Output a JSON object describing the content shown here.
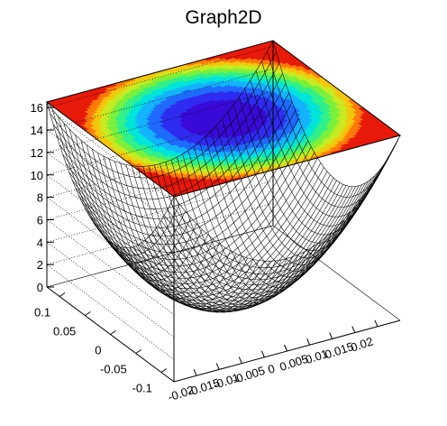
{
  "chart_data": {
    "type": "surface",
    "title": "Graph2D",
    "x_axis": {
      "label": "",
      "range": [
        -0.025,
        0.025
      ],
      "ticks": [
        -0.02,
        -0.015,
        -0.01,
        -0.005,
        0,
        0.005,
        0.01,
        0.015,
        0.02
      ],
      "tick_labels": [
        "-0.02",
        "-0.015",
        "-0.01",
        "-0.005",
        "0",
        "0.005",
        "0.01",
        "0.015",
        "0.02"
      ]
    },
    "y_axis": {
      "label": "",
      "range": [
        -0.125,
        0.125
      ],
      "ticks": [
        -0.1,
        -0.05,
        0,
        0.05,
        0.1
      ],
      "tick_labels": [
        "-0.1",
        "-0.05",
        "0",
        "0.05",
        "0.1"
      ]
    },
    "z_axis": {
      "label": "",
      "range": [
        0,
        16.5
      ],
      "ticks": [
        0,
        2,
        4,
        6,
        8,
        10,
        12,
        14,
        16
      ],
      "tick_labels": [
        "0",
        "2",
        "4",
        "6",
        "8",
        "10",
        "12",
        "14",
        "16"
      ]
    },
    "surface": {
      "function": "z = (x/0.025)^2 * 8.25 + (y/0.125)^2 * 8.25",
      "minimum": {
        "x": 0,
        "y": 0,
        "z": 0
      },
      "mesh_lines_x": 40,
      "mesh_lines_y": 40,
      "style": "wireframe mesh with filled color contour on top plane",
      "mesh_color": "#000000",
      "contour_palette": [
        "#3a0ad8",
        "#2f2cf0",
        "#1f6bff",
        "#14b3ff",
        "#00e5d9",
        "#30f08a",
        "#7af03c",
        "#c8ea22",
        "#f6c60a",
        "#ff7a0a",
        "#e81a0a"
      ]
    },
    "grid": "dotted lines on back walls"
  }
}
